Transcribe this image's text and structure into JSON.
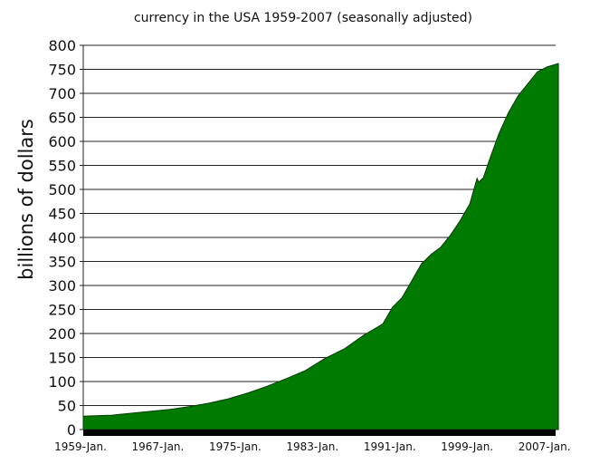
{
  "chart_data": {
    "type": "area",
    "title": "currency in the USA 1959-2007 (seasonally adjusted)",
    "xlabel": "",
    "ylabel": "billions of dollars",
    "ylim": [
      0,
      800
    ],
    "yticks": [
      0,
      50,
      100,
      150,
      200,
      250,
      300,
      350,
      400,
      450,
      500,
      550,
      600,
      650,
      700,
      750,
      800
    ],
    "xtick_labels": [
      "1959-Jan.",
      "1967-Jan.",
      "1975-Jan.",
      "1983-Jan.",
      "1991-Jan.",
      "1999-Jan.",
      "2007-Jan."
    ],
    "xtick_years": [
      1959,
      1967,
      1975,
      1983,
      1991,
      1999,
      2007
    ],
    "grid": "horizontal",
    "fill_color": "#007a00",
    "series": [
      {
        "x": [
          "1959-01",
          "1962-01",
          "1965-01",
          "1968-01",
          "1970-01",
          "1972-01",
          "1974-01",
          "1976-01",
          "1978-01",
          "1980-01",
          "1982-01",
          "1984-01",
          "1986-01",
          "1988-01",
          "1990-01",
          "1991-01",
          "1992-01",
          "1993-01",
          "1994-01",
          "1995-01",
          "1996-01",
          "1997-01",
          "1998-01",
          "1999-01",
          "1999-10",
          "1999-12",
          "2000-06",
          "2001-01",
          "2002-01",
          "2003-01",
          "2004-01",
          "2005-01",
          "2006-01",
          "2007-01",
          "2008-03"
        ],
        "values": [
          28,
          30,
          36,
          42,
          48,
          55,
          64,
          76,
          90,
          106,
          123,
          148,
          168,
          196,
          220,
          255,
          275,
          310,
          345,
          365,
          380,
          405,
          435,
          470,
          523,
          515,
          525,
          560,
          615,
          660,
          695,
          720,
          745,
          755,
          762
        ]
      }
    ]
  }
}
